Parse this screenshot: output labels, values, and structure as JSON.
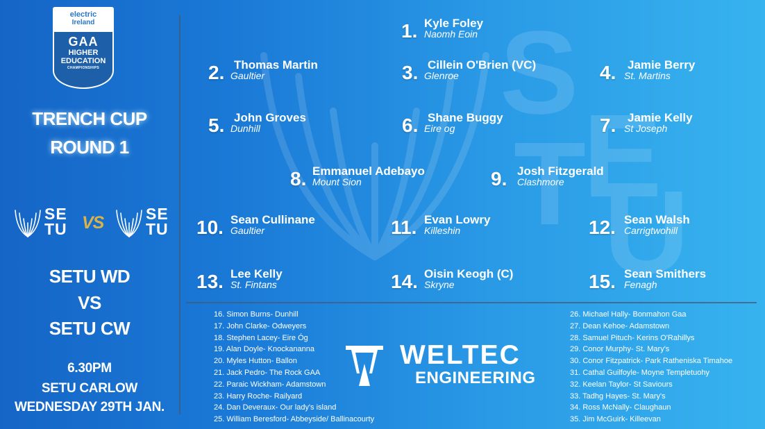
{
  "badge": {
    "brand_line1": "electric",
    "brand_line2": "Ireland",
    "org": "GAA",
    "title_line1": "HIGHER",
    "title_line2": "EDUCATION",
    "subtitle": "CHAMPIONSHIPS"
  },
  "competition": {
    "line1": "TRENCH CUP",
    "line2": "ROUND 1"
  },
  "logos": {
    "left_text_1": "SE",
    "left_text_2": "TU",
    "vs": "VS",
    "right_text_1": "SE",
    "right_text_2": "TU",
    "icon": "setu-fan-icon"
  },
  "match": {
    "team1": "SETU WD",
    "vs": "VS",
    "team2": "SETU CW"
  },
  "info": {
    "time": "6.30PM",
    "venue": "SETU CARLOW",
    "date": "WEDNESDAY 29TH JAN."
  },
  "watermark": {
    "letters": [
      "S",
      "E",
      "T",
      "U"
    ]
  },
  "players": [
    {
      "num": "1.",
      "name": "Kyle Foley",
      "club": "Naomh Eoin"
    },
    {
      "num": "2.",
      "name": "Thomas Martin",
      "club": "Gaultier"
    },
    {
      "num": "3.",
      "name": "Cillein O'Brien (VC)",
      "club": "Glenroe"
    },
    {
      "num": "4.",
      "name": "Jamie Berry",
      "club": "St. Martins"
    },
    {
      "num": "5.",
      "name": "John Groves",
      "club": "Dunhill"
    },
    {
      "num": "6.",
      "name": "Shane Buggy",
      "club": "Eire og"
    },
    {
      "num": "7.",
      "name": "Jamie Kelly",
      "club": "St Joseph"
    },
    {
      "num": "8.",
      "name": "Emmanuel Adebayo",
      "club": "Mount Sion"
    },
    {
      "num": "9.",
      "name": "Josh Fitzgerald",
      "club": "Clashmore"
    },
    {
      "num": "10.",
      "name": "Sean Cullinane",
      "club": "Gaultier"
    },
    {
      "num": "11.",
      "name": "Evan Lowry",
      "club": "Killeshin"
    },
    {
      "num": "12.",
      "name": "Sean Walsh",
      "club": "Carrigtwohill"
    },
    {
      "num": "13.",
      "name": "Lee Kelly",
      "club": "St. Fintans"
    },
    {
      "num": "14.",
      "name": "Oisin Keogh (C)",
      "club": "Skryne"
    },
    {
      "num": "15.",
      "name": "Sean Smithers",
      "club": "Fenagh"
    }
  ],
  "subs_left": [
    "16. Simon Burns- Dunhill",
    "17. John Clarke- Odweyers",
    "18. Stephen Lacey- Eire Óg",
    "19. Alan Doyle- Knockananna",
    "20. Myles Hutton- Ballon",
    "21. Jack Pedro- The Rock GAA",
    "22. Paraic Wickham- Adamstown",
    "23. Harry Roche- Railyard",
    "24. Dan Deveraux- Our lady's island",
    "25. William Beresford- Abbeyside/ Ballinacourty"
  ],
  "subs_right": [
    "26. Michael Hally- Bonmahon Gaa",
    "27. Dean Kehoe- Adamstown",
    "28. Samuel Pituch- Kerins O'Rahillys",
    "29. Conor Murphy- St. Mary's",
    "30. Conor Fitzpatrick- Park Ratheniska Timahoe",
    "31. Cathal Guilfoyle- Moyne Templetuohy",
    "32. Keelan Taylor- St Saviours",
    "33. Tadhg Hayes- St. Mary's",
    "34. Ross McNally- Claughaun",
    "35. Jim McGuirk- Killeevan"
  ],
  "sponsor": {
    "name": "WELTEC",
    "sub": "ENGINEERING",
    "icon": "weltec-logo-icon"
  }
}
